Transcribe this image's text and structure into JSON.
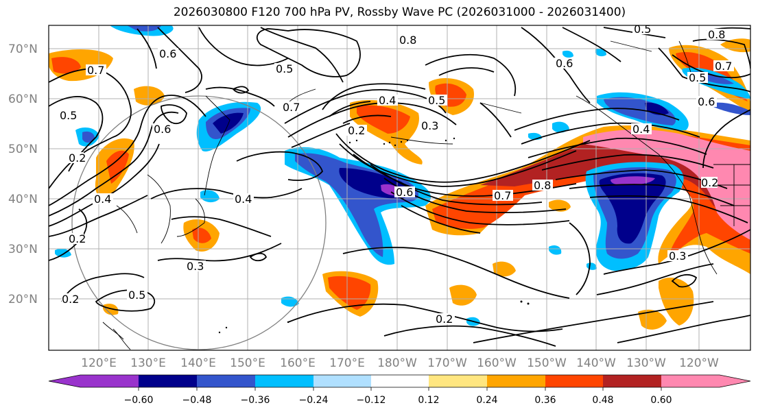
{
  "title": "2026030800 F120 700 hPa PV, Rossby Wave PC (2026031000 - 2026031400)",
  "lat_labels": [
    "70°N",
    "60°N",
    "50°N",
    "40°N",
    "30°N",
    "20°N"
  ],
  "lon_labels": [
    "120°E",
    "130°E",
    "140°E",
    "150°E",
    "160°E",
    "170°E",
    "180°W",
    "170°W",
    "160°W",
    "150°W",
    "140°W",
    "130°W",
    "120°W"
  ],
  "colorbar": {
    "tick_labels": [
      "−0.60",
      "−0.48",
      "−0.36",
      "−0.24",
      "−0.12",
      "0.12",
      "0.24",
      "0.36",
      "0.48",
      "0.60"
    ],
    "colors": [
      "#9933cc",
      "#00008b",
      "#3355cc",
      "#00bfff",
      "#b0e0ff",
      "#ffffff",
      "#ffe680",
      "#ffa500",
      "#ff4500",
      "#b22222",
      "#ff88b0"
    ]
  },
  "contour_labels": [
    "0.5",
    "0.8",
    "0.8",
    "0.6",
    "0.7",
    "0.5",
    "0.6",
    "0.7",
    "0.5",
    "0.4",
    "0.5",
    "0.3",
    "0.2",
    "0.6",
    "0.7",
    "0.8",
    "0.4",
    "0.6",
    "0.2",
    "0.3",
    "0.5",
    "0.2",
    "0.2",
    "0.3",
    "0.4",
    "0.4",
    "0.2",
    "0.2",
    "0.6",
    "0.5",
    "0.7"
  ],
  "fill_colors": {
    "orange": "#ffa500",
    "red_orange": "#ff4500",
    "dark_red": "#b22222",
    "pink": "#ff88b0",
    "navy": "#00008b",
    "blue": "#3355cc",
    "cyan": "#00bfff",
    "light_blue": "#b0e0ff",
    "purple": "#9933cc",
    "yellow": "#ffe680"
  }
}
